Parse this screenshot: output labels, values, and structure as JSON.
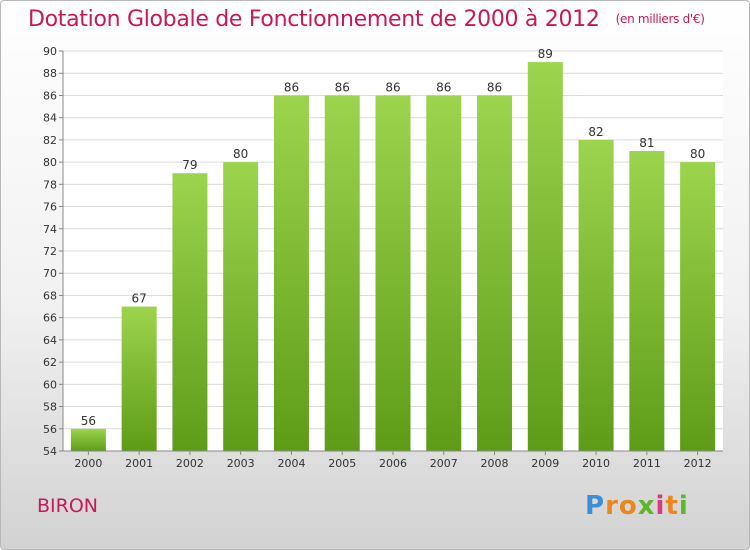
{
  "title": "Dotation Globale de Fonctionnement de 2000 à 2012",
  "subtitle": "(en milliers d'€)",
  "commune": "BIRON",
  "logo": {
    "letters": [
      "P",
      "r",
      "o",
      "x",
      "i",
      "t",
      "i"
    ]
  },
  "colors": {
    "title": "#c8185a",
    "bar_top": "#9dd44e",
    "bar_bottom": "#5e9c18",
    "logo": [
      "#3b8fd6",
      "#e8881e",
      "#e8881e",
      "#5fb52d",
      "#d83a7a",
      "#e8881e",
      "#5fb52d"
    ]
  },
  "chart_data": {
    "type": "bar",
    "categories": [
      "2000",
      "2001",
      "2002",
      "2003",
      "2004",
      "2005",
      "2006",
      "2007",
      "2008",
      "2009",
      "2010",
      "2011",
      "2012"
    ],
    "values": [
      56,
      67,
      79,
      80,
      86,
      86,
      86,
      86,
      86,
      89,
      82,
      81,
      80
    ],
    "title": "Dotation Globale de Fonctionnement de 2000 à 2012",
    "subtitle": "(en milliers d'€)",
    "xlabel": "",
    "ylabel": "",
    "ylim": [
      54,
      90
    ],
    "yticks": [
      54,
      56,
      58,
      60,
      62,
      64,
      66,
      68,
      70,
      72,
      74,
      76,
      78,
      80,
      82,
      84,
      86,
      88,
      90
    ],
    "grid": true,
    "legend": "none"
  }
}
